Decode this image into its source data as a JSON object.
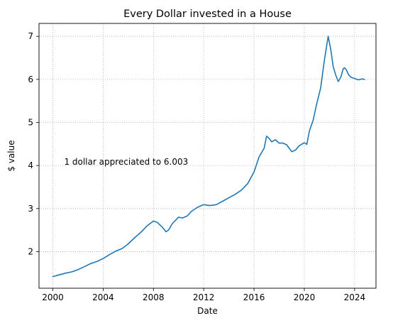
{
  "chart_data": {
    "type": "line",
    "title": "Every Dollar invested in a House",
    "xlabel": "Date",
    "ylabel": "$ value",
    "annotation": {
      "text": "1 dollar appreciated to 6.003",
      "x": 2000.9,
      "y": 4.0
    },
    "xlim": [
      1998.9,
      2025.7
    ],
    "ylim": [
      1.15,
      7.3
    ],
    "x_ticks": [
      2000,
      2004,
      2008,
      2012,
      2016,
      2020,
      2024
    ],
    "x_tick_labels": [
      "2000",
      "2004",
      "2008",
      "2012",
      "2016",
      "2020",
      "2024"
    ],
    "y_ticks": [
      2,
      3,
      4,
      5,
      6,
      7
    ],
    "y_tick_labels": [
      "2",
      "3",
      "4",
      "5",
      "6",
      "7"
    ],
    "grid": true,
    "series": [
      {
        "color": "#1f77b4",
        "x": [
          2000.0,
          2000.5,
          2001.0,
          2001.5,
          2002.0,
          2002.5,
          2003.0,
          2003.5,
          2004.0,
          2004.5,
          2005.0,
          2005.5,
          2006.0,
          2006.5,
          2007.0,
          2007.5,
          2008.0,
          2008.3,
          2008.7,
          2009.0,
          2009.2,
          2009.5,
          2010.0,
          2010.3,
          2010.7,
          2011.0,
          2011.5,
          2012.0,
          2012.5,
          2013.0,
          2013.5,
          2014.0,
          2014.5,
          2015.0,
          2015.5,
          2016.0,
          2016.4,
          2016.8,
          2017.0,
          2017.2,
          2017.4,
          2017.7,
          2018.0,
          2018.3,
          2018.6,
          2019.0,
          2019.3,
          2019.6,
          2020.0,
          2020.2,
          2020.4,
          2020.7,
          2021.0,
          2021.3,
          2021.6,
          2021.9,
          2022.1,
          2022.3,
          2022.5,
          2022.7,
          2022.9,
          2023.1,
          2023.2,
          2023.35,
          2023.5,
          2023.7,
          2024.0,
          2024.3,
          2024.6,
          2024.8
        ],
        "y": [
          1.42,
          1.46,
          1.5,
          1.53,
          1.58,
          1.65,
          1.72,
          1.77,
          1.84,
          1.93,
          2.01,
          2.07,
          2.18,
          2.32,
          2.45,
          2.6,
          2.71,
          2.68,
          2.57,
          2.46,
          2.5,
          2.65,
          2.8,
          2.78,
          2.83,
          2.93,
          3.03,
          3.09,
          3.07,
          3.09,
          3.17,
          3.25,
          3.33,
          3.43,
          3.58,
          3.85,
          4.2,
          4.4,
          4.68,
          4.63,
          4.55,
          4.6,
          4.52,
          4.52,
          4.48,
          4.32,
          4.36,
          4.46,
          4.53,
          4.49,
          4.8,
          5.05,
          5.45,
          5.8,
          6.45,
          7.0,
          6.7,
          6.3,
          6.1,
          5.95,
          6.05,
          6.25,
          6.27,
          6.22,
          6.12,
          6.05,
          6.02,
          5.99,
          6.01,
          6.0
        ]
      }
    ]
  }
}
